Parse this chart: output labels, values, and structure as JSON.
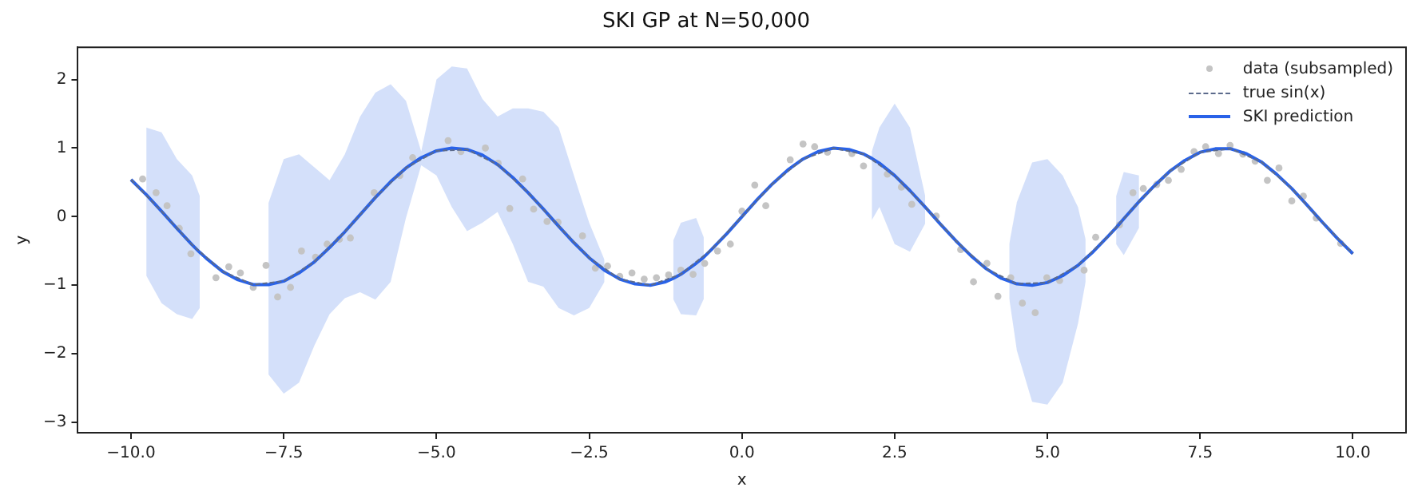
{
  "chart_data": {
    "type": "line",
    "title": "SKI GP at N=50,000",
    "xlabel": "x",
    "ylabel": "y",
    "xlim": [
      -10.87,
      10.87
    ],
    "ylim": [
      -3.15,
      2.47
    ],
    "xticks": [
      {
        "value": -10,
        "label": "−10.0"
      },
      {
        "value": -7.5,
        "label": "−7.5"
      },
      {
        "value": -5,
        "label": "−5.0"
      },
      {
        "value": -2.5,
        "label": "−2.5"
      },
      {
        "value": 0,
        "label": "0.0"
      },
      {
        "value": 2.5,
        "label": "2.5"
      },
      {
        "value": 5,
        "label": "5.0"
      },
      {
        "value": 7.5,
        "label": "7.5"
      },
      {
        "value": 10,
        "label": "10.0"
      }
    ],
    "yticks": [
      {
        "value": -3,
        "label": "−3"
      },
      {
        "value": -2,
        "label": "−2"
      },
      {
        "value": -1,
        "label": "−1"
      },
      0,
      1,
      2
    ],
    "grid": false,
    "legend": "top right",
    "series": [
      {
        "name": "data (subsampled)",
        "type": "scatter",
        "marker": "circle",
        "color": "#c4c4c4",
        "x": [
          -9.81,
          -9.59,
          -9.41,
          -9.21,
          -9.02,
          -8.61,
          -8.4,
          -8.21,
          -8.0,
          -7.79,
          -7.6,
          -7.39,
          -7.21,
          -6.98,
          -6.79,
          -6.59,
          -6.41,
          -6.02,
          -5.6,
          -5.39,
          -4.81,
          -4.6,
          -4.2,
          -3.99,
          -3.8,
          -3.59,
          -3.41,
          -3.19,
          -3.01,
          -2.61,
          -2.4,
          -2.2,
          -2.0,
          -1.8,
          -1.6,
          -1.4,
          -1.2,
          -1.0,
          -0.8,
          -0.61,
          -0.4,
          -0.19,
          0.0,
          0.21,
          0.39,
          0.79,
          1.0,
          1.19,
          1.4,
          1.8,
          1.99,
          2.38,
          2.61,
          2.78,
          3.18,
          3.58,
          3.79,
          4.01,
          4.19,
          4.4,
          4.59,
          4.8,
          4.99,
          5.2,
          5.6,
          5.79,
          6.18,
          6.4,
          6.57,
          6.79,
          6.98,
          7.19,
          7.4,
          7.59,
          7.8,
          7.99,
          8.2,
          8.4,
          8.6,
          8.79,
          9.0,
          9.19,
          9.4,
          9.8
        ],
        "values": [
          0.55,
          0.35,
          0.16,
          -0.17,
          -0.54,
          -0.89,
          -0.73,
          -0.82,
          -1.03,
          -0.71,
          -1.17,
          -1.03,
          -0.5,
          -0.59,
          -0.4,
          -0.33,
          -0.31,
          0.35,
          0.6,
          0.86,
          1.11,
          0.95,
          1.0,
          0.78,
          0.12,
          0.55,
          0.11,
          -0.07,
          -0.08,
          -0.28,
          -0.75,
          -0.72,
          -0.87,
          -0.82,
          -0.91,
          -0.89,
          -0.85,
          -0.78,
          -0.84,
          -0.68,
          -0.5,
          -0.4,
          0.08,
          0.46,
          0.16,
          0.83,
          1.06,
          1.02,
          0.94,
          0.92,
          0.74,
          0.62,
          0.43,
          0.18,
          0.01,
          -0.48,
          -0.95,
          -0.68,
          -1.16,
          -0.89,
          -1.26,
          -1.4,
          -0.89,
          -0.93,
          -0.78,
          -0.3,
          -0.12,
          0.35,
          0.41,
          0.47,
          0.53,
          0.69,
          0.95,
          1.02,
          0.92,
          1.04,
          0.91,
          0.81,
          0.53,
          0.71,
          0.23,
          0.3,
          -0.02,
          -0.39
        ]
      },
      {
        "name": "true sin(x)",
        "type": "line",
        "line_style": "dashed",
        "color": "#5c6b8c",
        "x": [
          -10,
          -9.5,
          -9,
          -8.5,
          -8,
          -7.5,
          -7,
          -6.5,
          -6,
          -5.5,
          -5,
          -4.5,
          -4,
          -3.5,
          -3,
          -2.5,
          -2,
          -1.5,
          -1,
          -0.5,
          0,
          0.5,
          1,
          1.5,
          2,
          2.5,
          3,
          3.5,
          4,
          4.5,
          5,
          5.5,
          6,
          6.5,
          7,
          7.5,
          8,
          8.5,
          9,
          9.5,
          10
        ],
        "values": [
          0.54,
          0.08,
          -0.41,
          -0.8,
          -0.99,
          -0.94,
          -0.66,
          -0.22,
          0.28,
          0.71,
          0.96,
          0.98,
          0.76,
          0.35,
          -0.14,
          -0.6,
          -0.91,
          -1.0,
          -0.84,
          -0.48,
          0,
          0.48,
          0.84,
          1.0,
          0.91,
          0.6,
          0.14,
          -0.35,
          -0.76,
          -0.98,
          -0.96,
          -0.71,
          -0.28,
          0.22,
          0.66,
          0.94,
          0.99,
          0.8,
          0.41,
          -0.08,
          -0.54
        ]
      },
      {
        "name": "SKI prediction",
        "type": "line",
        "line_style": "solid",
        "color": "#2962e8",
        "x": [
          -10,
          -9.75,
          -9.5,
          -9.25,
          -9,
          -8.875,
          -8.75,
          -8.5,
          -8.25,
          -8,
          -7.75,
          -7.5,
          -7.25,
          -7,
          -6.75,
          -6.5,
          -6.25,
          -6,
          -5.75,
          -5.5,
          -5.25,
          -5,
          -4.75,
          -4.5,
          -4.25,
          -4,
          -3.75,
          -3.5,
          -3.25,
          -3,
          -2.75,
          -2.5,
          -2.25,
          -2,
          -1.75,
          -1.5,
          -1.25,
          -1.125,
          -1,
          -0.75,
          -0.625,
          -0.5,
          -0.25,
          0,
          0.25,
          0.5,
          0.75,
          1,
          1.25,
          1.5,
          1.75,
          2,
          2.125,
          2.25,
          2.5,
          2.75,
          3,
          3.25,
          3.5,
          3.75,
          4,
          4.25,
          4.375,
          4.5,
          4.75,
          5,
          5.25,
          5.5,
          5.625,
          5.75,
          6,
          6.125,
          6.25,
          6.5,
          6.75,
          7,
          7.25,
          7.5,
          7.75,
          8,
          8.25,
          8.5,
          8.75,
          9,
          9.25,
          9.5,
          9.75,
          10
        ],
        "values": [
          0.54,
          0.32,
          0.08,
          -0.17,
          -0.41,
          -0.52,
          -0.62,
          -0.8,
          -0.92,
          -0.99,
          -0.99,
          -0.94,
          -0.82,
          -0.66,
          -0.45,
          -0.22,
          0.03,
          0.28,
          0.51,
          0.71,
          0.86,
          0.96,
          1.0,
          0.98,
          0.9,
          0.76,
          0.57,
          0.35,
          0.11,
          -0.14,
          -0.38,
          -0.6,
          -0.78,
          -0.91,
          -0.98,
          -1.0,
          -0.95,
          -0.9,
          -0.84,
          -0.68,
          -0.59,
          -0.48,
          -0.25,
          0,
          0.25,
          0.48,
          0.68,
          0.84,
          0.95,
          1.0,
          0.98,
          0.91,
          0.85,
          0.78,
          0.6,
          0.38,
          0.14,
          -0.11,
          -0.35,
          -0.57,
          -0.76,
          -0.9,
          -0.94,
          -0.98,
          -1.0,
          -0.96,
          -0.86,
          -0.71,
          -0.61,
          -0.51,
          -0.28,
          -0.16,
          -0.03,
          0.22,
          0.45,
          0.66,
          0.82,
          0.94,
          0.99,
          0.99,
          0.92,
          0.8,
          0.62,
          0.41,
          0.17,
          -0.08,
          -0.32,
          -0.54
        ],
        "upper": [
          null,
          1.3,
          1.23,
          0.84,
          0.6,
          0.3,
          null,
          null,
          null,
          null,
          0.2,
          0.84,
          0.91,
          0.72,
          0.53,
          0.91,
          1.46,
          1.81,
          1.93,
          1.69,
          0.95,
          2.0,
          2.19,
          2.16,
          1.72,
          1.46,
          1.58,
          1.58,
          1.53,
          1.3,
          0.6,
          -0.09,
          -0.63,
          null,
          null,
          null,
          null,
          -0.35,
          -0.09,
          -0.02,
          -0.3,
          null,
          null,
          null,
          null,
          null,
          null,
          null,
          null,
          null,
          null,
          null,
          0.95,
          1.3,
          1.65,
          1.3,
          0.3,
          null,
          null,
          null,
          null,
          null,
          -0.4,
          0.21,
          0.79,
          0.84,
          0.6,
          0.14,
          -0.33,
          null,
          null,
          0.3,
          0.65,
          0.6,
          null,
          null,
          null,
          null,
          null,
          null,
          null,
          null,
          null,
          null,
          null,
          null,
          null,
          null
        ],
        "lower": [
          null,
          -0.86,
          -1.26,
          -1.42,
          -1.49,
          -1.33,
          null,
          null,
          null,
          null,
          -2.3,
          -2.58,
          -2.42,
          -1.88,
          -1.42,
          -1.19,
          -1.1,
          -1.21,
          -0.95,
          -0.02,
          0.75,
          0.6,
          0.14,
          -0.21,
          -0.09,
          0.07,
          -0.4,
          -0.95,
          -1.02,
          -1.33,
          -1.44,
          -1.33,
          -0.95,
          null,
          null,
          null,
          null,
          -1.2,
          -1.42,
          -1.44,
          -1.2,
          null,
          null,
          null,
          null,
          null,
          null,
          null,
          null,
          null,
          null,
          null,
          -0.05,
          0.14,
          -0.4,
          -0.51,
          -0.1,
          null,
          null,
          null,
          null,
          null,
          -1.19,
          -1.95,
          -2.7,
          -2.74,
          -2.42,
          -1.56,
          -0.95,
          null,
          null,
          -0.4,
          -0.56,
          -0.16,
          null,
          null,
          null,
          null,
          null,
          null,
          null,
          null,
          null,
          null,
          null,
          null,
          null,
          null
        ]
      }
    ]
  }
}
